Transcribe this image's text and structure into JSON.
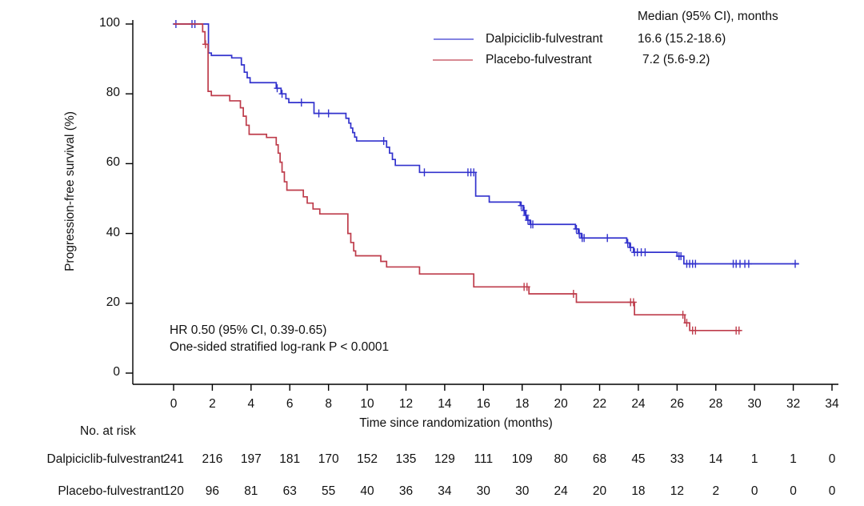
{
  "chart_data": {
    "type": "line",
    "subtype": "kaplan-meier-step-survival",
    "title": "",
    "xlabel": "Time since randomization (months)",
    "ylabel": "Progression-free survival (%)",
    "xlim": [
      0,
      34
    ],
    "ylim": [
      0,
      100
    ],
    "x_ticks": [
      0,
      2,
      4,
      6,
      8,
      10,
      12,
      14,
      16,
      18,
      20,
      22,
      24,
      26,
      28,
      30,
      32,
      34
    ],
    "y_ticks": [
      0,
      20,
      40,
      60,
      80,
      100
    ],
    "grid": false,
    "legend_position": "top-right",
    "legend_header": "Median (95% CI), months",
    "annotations": [
      "HR 0.50 (95% CI, 0.39-0.65)",
      "One-sided stratified log-rank P < 0.0001"
    ],
    "series": [
      {
        "name": "Dalpiciclib-fulvestrant",
        "median_text": "16.6 (15.2-18.6)",
        "color": "#3232cd",
        "steps": [
          [
            0,
            100
          ],
          [
            1.8,
            91.7
          ],
          [
            1.95,
            91.0
          ],
          [
            3.0,
            90.3
          ],
          [
            3.5,
            88.3
          ],
          [
            3.65,
            86.2
          ],
          [
            3.8,
            84.6
          ],
          [
            3.95,
            83.2
          ],
          [
            5.3,
            81.6
          ],
          [
            5.55,
            80.0
          ],
          [
            5.8,
            78.6
          ],
          [
            5.95,
            77.5
          ],
          [
            7.25,
            74.4
          ],
          [
            8.9,
            73.0
          ],
          [
            9.05,
            71.6
          ],
          [
            9.15,
            70.2
          ],
          [
            9.25,
            68.9
          ],
          [
            9.35,
            67.6
          ],
          [
            9.45,
            66.5
          ],
          [
            11.0,
            64.7
          ],
          [
            11.15,
            63.0
          ],
          [
            11.3,
            61.2
          ],
          [
            11.45,
            59.5
          ],
          [
            12.7,
            57.5
          ],
          [
            15.6,
            50.7
          ],
          [
            16.3,
            49.0
          ],
          [
            17.9,
            48.0
          ],
          [
            18.05,
            46.6
          ],
          [
            18.15,
            45.2
          ],
          [
            18.25,
            43.8
          ],
          [
            18.4,
            42.6
          ],
          [
            20.75,
            41.3
          ],
          [
            20.9,
            40.0
          ],
          [
            21.05,
            38.7
          ],
          [
            23.4,
            37.3
          ],
          [
            23.55,
            36.0
          ],
          [
            23.75,
            34.6
          ],
          [
            26.0,
            33.5
          ],
          [
            26.35,
            31.3
          ],
          [
            32.3,
            31.3
          ]
        ],
        "censors": [
          [
            0.12,
            100
          ],
          [
            0.95,
            100
          ],
          [
            1.1,
            100
          ],
          [
            5.35,
            81.6
          ],
          [
            5.6,
            80.0
          ],
          [
            6.6,
            77.5
          ],
          [
            7.5,
            74.4
          ],
          [
            8.0,
            74.4
          ],
          [
            10.85,
            66.5
          ],
          [
            12.95,
            57.5
          ],
          [
            15.2,
            57.5
          ],
          [
            15.35,
            57.5
          ],
          [
            15.5,
            57.5
          ],
          [
            17.95,
            48.0
          ],
          [
            18.1,
            46.6
          ],
          [
            18.2,
            45.2
          ],
          [
            18.3,
            43.8
          ],
          [
            18.45,
            42.6
          ],
          [
            18.55,
            42.6
          ],
          [
            20.8,
            41.3
          ],
          [
            20.95,
            40.0
          ],
          [
            21.1,
            38.7
          ],
          [
            21.2,
            38.7
          ],
          [
            22.4,
            38.7
          ],
          [
            23.45,
            37.3
          ],
          [
            23.6,
            36.0
          ],
          [
            23.8,
            34.6
          ],
          [
            23.95,
            34.6
          ],
          [
            24.15,
            34.6
          ],
          [
            24.35,
            34.6
          ],
          [
            26.1,
            33.5
          ],
          [
            26.2,
            33.5
          ],
          [
            26.5,
            31.3
          ],
          [
            26.65,
            31.3
          ],
          [
            26.8,
            31.3
          ],
          [
            26.95,
            31.3
          ],
          [
            28.9,
            31.3
          ],
          [
            29.05,
            31.3
          ],
          [
            29.25,
            31.3
          ],
          [
            29.5,
            31.3
          ],
          [
            29.7,
            31.3
          ],
          [
            32.1,
            31.3
          ]
        ]
      },
      {
        "name": "Placebo-fulvestrant",
        "median_text": "7.2 (5.6-9.2)",
        "color": "#be3c4b",
        "steps": [
          [
            0,
            100
          ],
          [
            1.5,
            97.8
          ],
          [
            1.62,
            94.2
          ],
          [
            1.78,
            80.7
          ],
          [
            1.95,
            79.5
          ],
          [
            2.9,
            78.0
          ],
          [
            3.45,
            76.0
          ],
          [
            3.6,
            73.6
          ],
          [
            3.75,
            71.0
          ],
          [
            3.9,
            68.4
          ],
          [
            4.8,
            67.5
          ],
          [
            5.3,
            65.4
          ],
          [
            5.4,
            63.0
          ],
          [
            5.5,
            60.4
          ],
          [
            5.6,
            57.6
          ],
          [
            5.72,
            54.8
          ],
          [
            5.85,
            52.4
          ],
          [
            6.7,
            50.5
          ],
          [
            6.9,
            48.7
          ],
          [
            7.2,
            47.0
          ],
          [
            7.55,
            45.6
          ],
          [
            9.0,
            40.0
          ],
          [
            9.15,
            37.4
          ],
          [
            9.3,
            35.0
          ],
          [
            9.4,
            33.6
          ],
          [
            10.7,
            32.0
          ],
          [
            11.0,
            30.4
          ],
          [
            12.7,
            28.4
          ],
          [
            15.5,
            24.7
          ],
          [
            18.35,
            22.7
          ],
          [
            20.8,
            20.3
          ],
          [
            23.8,
            16.7
          ],
          [
            26.4,
            14.4
          ],
          [
            26.65,
            12.2
          ],
          [
            29.3,
            12.2
          ]
        ],
        "censors": [
          [
            1.65,
            94.2
          ],
          [
            18.1,
            24.7
          ],
          [
            18.25,
            24.7
          ],
          [
            20.65,
            22.7
          ],
          [
            23.6,
            20.3
          ],
          [
            23.75,
            20.3
          ],
          [
            26.3,
            16.7
          ],
          [
            26.5,
            14.4
          ],
          [
            26.8,
            12.2
          ],
          [
            26.95,
            12.2
          ],
          [
            29.05,
            12.2
          ],
          [
            29.2,
            12.2
          ]
        ]
      }
    ],
    "risk_table": {
      "title": "No. at risk",
      "time_points": [
        0,
        2,
        4,
        6,
        8,
        10,
        12,
        14,
        16,
        18,
        20,
        22,
        24,
        26,
        28,
        30,
        32,
        34
      ],
      "rows": [
        {
          "label": "Dalpiciclib-fulvestrant",
          "counts": [
            241,
            216,
            197,
            181,
            170,
            152,
            135,
            129,
            111,
            109,
            80,
            68,
            45,
            33,
            14,
            1,
            1,
            0
          ]
        },
        {
          "label": "Placebo-fulvestrant",
          "counts": [
            120,
            96,
            81,
            63,
            55,
            40,
            36,
            34,
            30,
            30,
            24,
            20,
            18,
            12,
            2,
            0,
            0,
            0
          ]
        }
      ]
    }
  }
}
